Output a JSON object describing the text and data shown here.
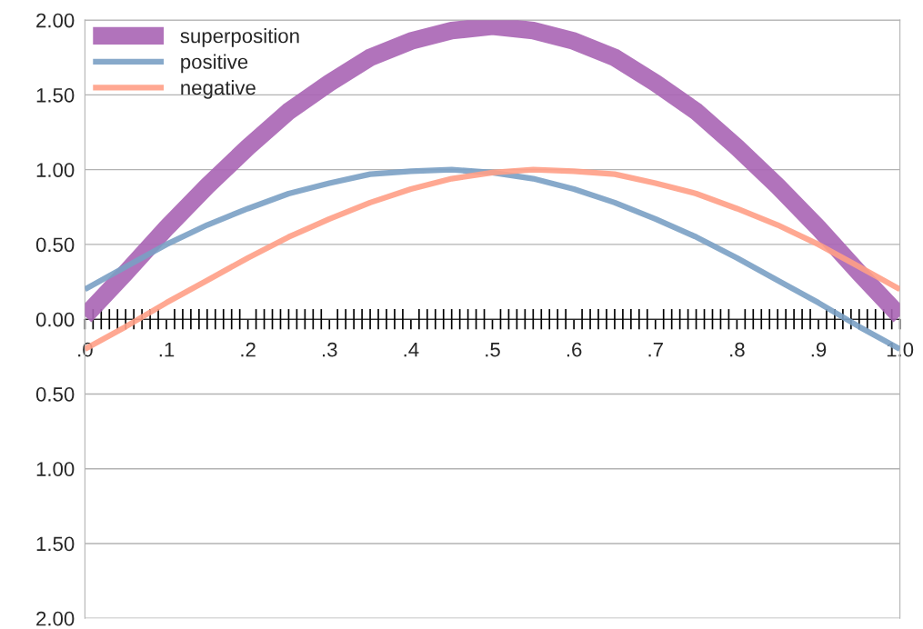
{
  "chart_data": {
    "type": "line",
    "x": [
      0,
      0.05,
      0.1,
      0.15,
      0.2,
      0.25,
      0.3,
      0.35,
      0.4,
      0.45,
      0.5,
      0.55,
      0.6,
      0.65,
      0.7,
      0.75,
      0.8,
      0.85,
      0.9,
      0.95,
      1.0
    ],
    "series": [
      {
        "name": "superposition",
        "color": "#a864b4",
        "values": [
          0.02,
          0.31,
          0.61,
          0.89,
          1.15,
          1.39,
          1.58,
          1.75,
          1.86,
          1.93,
          1.96,
          1.93,
          1.86,
          1.75,
          1.58,
          1.39,
          1.15,
          0.89,
          0.61,
          0.31,
          0.02
        ]
      },
      {
        "name": "positive",
        "color": "#7aa0c4",
        "values": [
          0.2,
          0.35,
          0.5,
          0.63,
          0.74,
          0.84,
          0.91,
          0.97,
          0.99,
          1.0,
          0.98,
          0.94,
          0.87,
          0.78,
          0.67,
          0.55,
          0.41,
          0.26,
          0.11,
          -0.05,
          -0.2
        ]
      },
      {
        "name": "negative",
        "color": "#ff9f86",
        "values": [
          -0.2,
          -0.05,
          0.11,
          0.26,
          0.41,
          0.55,
          0.67,
          0.78,
          0.87,
          0.94,
          0.98,
          1.0,
          0.99,
          0.97,
          0.91,
          0.84,
          0.74,
          0.63,
          0.5,
          0.35,
          0.2
        ]
      }
    ],
    "xlim": [
      0,
      1
    ],
    "ylim": [
      -2,
      2
    ],
    "xticks": [
      {
        "value": 0,
        "label": ".0"
      },
      {
        "value": 0.1,
        "label": ".1"
      },
      {
        "value": 0.2,
        "label": ".2"
      },
      {
        "value": 0.3,
        "label": ".3"
      },
      {
        "value": 0.4,
        "label": ".4"
      },
      {
        "value": 0.5,
        "label": ".5"
      },
      {
        "value": 0.6,
        "label": ".6"
      },
      {
        "value": 0.7,
        "label": ".7"
      },
      {
        "value": 0.8,
        "label": ".8"
      },
      {
        "value": 0.9,
        "label": ".9"
      },
      {
        "value": 1.0,
        "label": "1.0"
      }
    ],
    "yticks": [
      {
        "value": -2,
        "label": "2.00"
      },
      {
        "value": -1.5,
        "label": "1.50"
      },
      {
        "value": -1,
        "label": "1.00"
      },
      {
        "value": -0.5,
        "label": "0.50"
      },
      {
        "value": 0,
        "label": "0.00"
      },
      {
        "value": 0.5,
        "label": "0.50"
      },
      {
        "value": 1,
        "label": "1.00"
      },
      {
        "value": 1.5,
        "label": "1.50"
      },
      {
        "value": 2,
        "label": "2.00"
      }
    ],
    "grid": "y",
    "legend": "top left",
    "marker": "none",
    "line_style": "solid"
  }
}
